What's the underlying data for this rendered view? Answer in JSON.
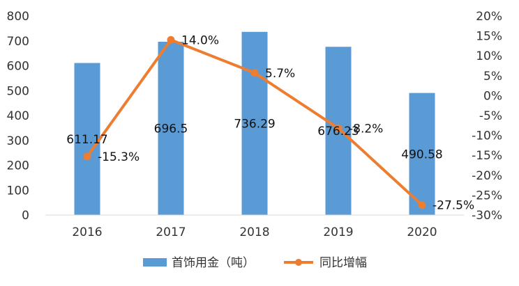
{
  "chart_data": {
    "type": "bar",
    "categories": [
      "2016",
      "2017",
      "2018",
      "2019",
      "2020"
    ],
    "series": [
      {
        "name": "首饰用金（吨）",
        "kind": "bar",
        "axis": "left",
        "values": [
          611.17,
          696.5,
          736.29,
          676.23,
          490.58
        ],
        "labels": [
          "611.17",
          "696.5",
          "736.29",
          "676.23",
          "490.58"
        ],
        "color": "#5B9BD5"
      },
      {
        "name": "同比增幅",
        "kind": "line",
        "axis": "right",
        "values": [
          -15.3,
          14.0,
          5.7,
          -8.2,
          -27.5
        ],
        "labels": [
          "-15.3%",
          "14.0%",
          "5.7%",
          "-8.2%",
          "-27.5%"
        ],
        "color": "#ED7D31"
      }
    ],
    "y_left": {
      "ylim": [
        0,
        800
      ],
      "ticks": [
        "0",
        "100",
        "200",
        "300",
        "400",
        "500",
        "600",
        "700",
        "800"
      ]
    },
    "y_right": {
      "ylim": [
        -30,
        20
      ],
      "ticks": [
        "20%",
        "15%",
        "10%",
        "5%",
        "0%",
        "-5%",
        "-10%",
        "-15%",
        "-20%",
        "-25%",
        "-30%"
      ]
    },
    "grid": false,
    "legend": "bottom"
  }
}
